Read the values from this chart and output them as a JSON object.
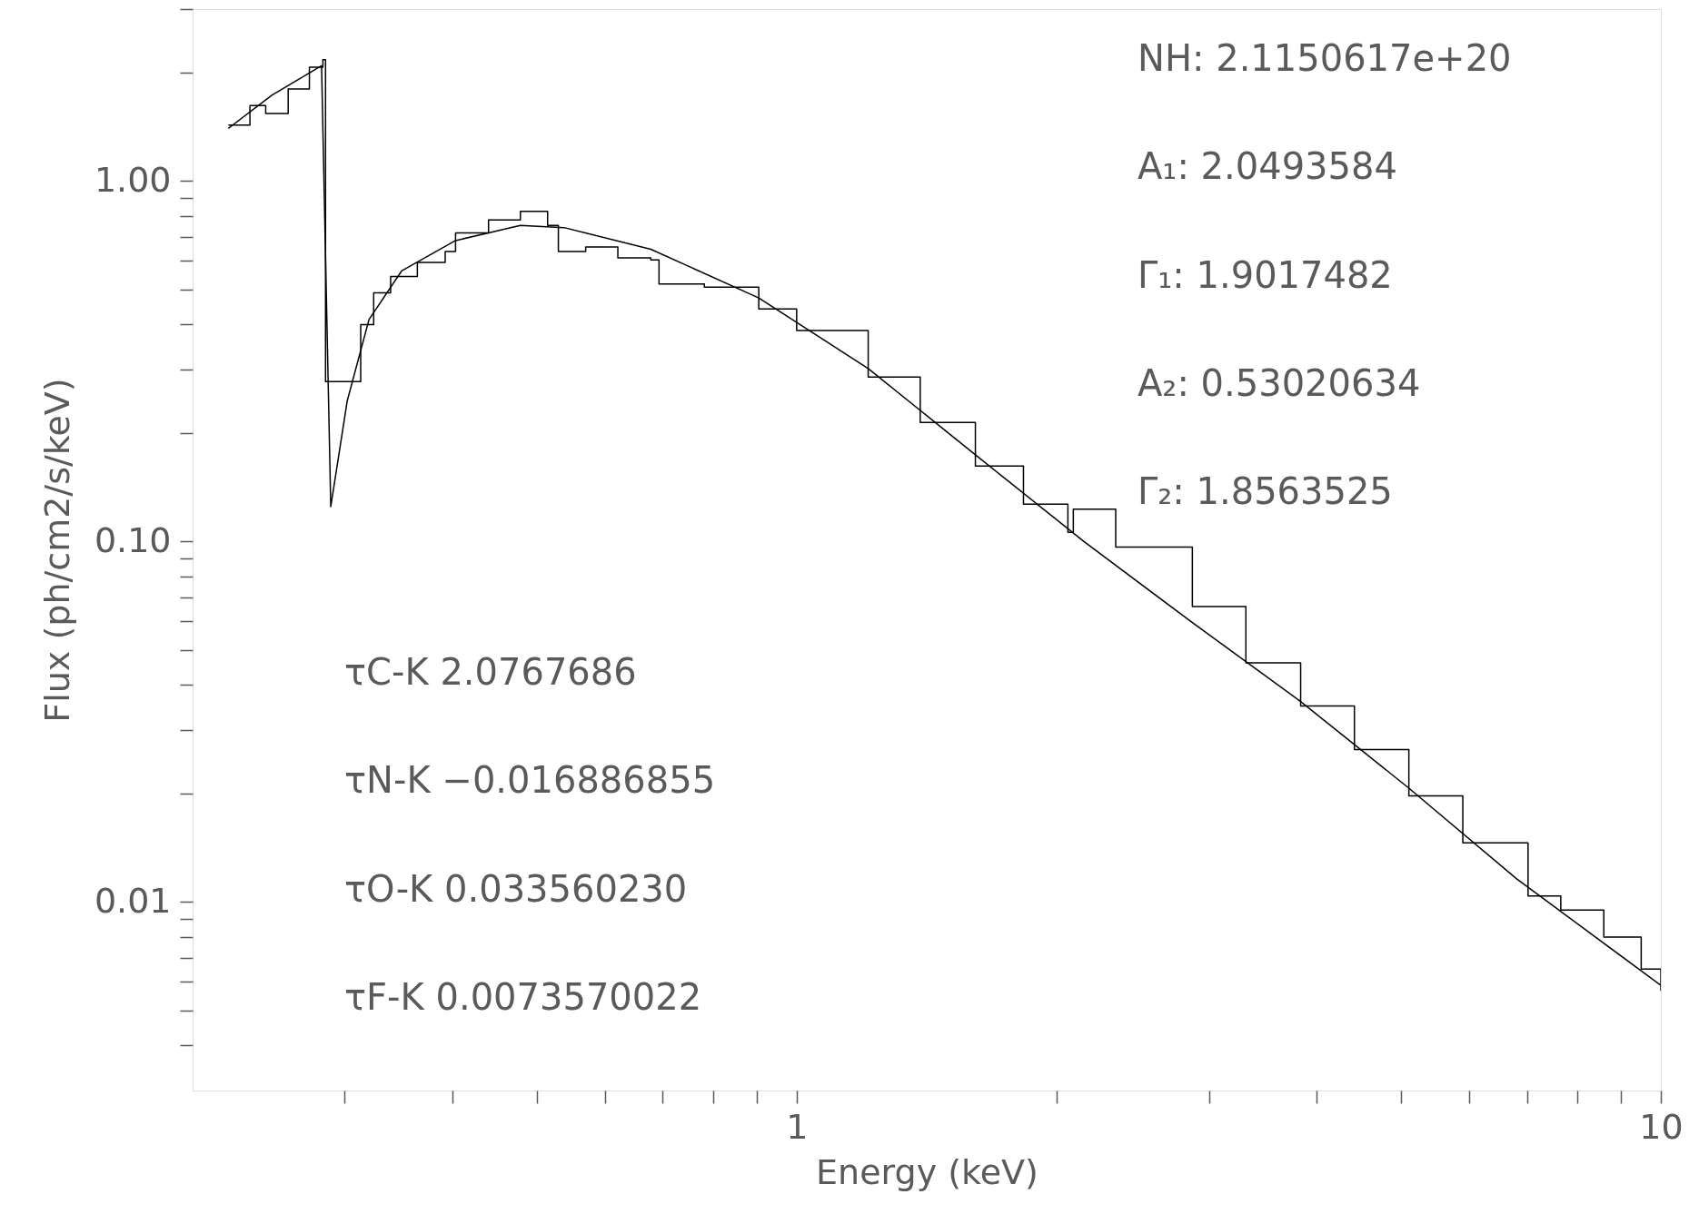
{
  "chart_data": {
    "type": "line",
    "xlabel": "Energy (keV)",
    "ylabel": "Flux (ph/cm2/s/keV)",
    "log": "xy",
    "grid": false,
    "marker": "none",
    "line_style": "solid",
    "xlim": [
      0.2,
      10
    ],
    "ylim": [
      0.003,
      3
    ],
    "xticks": [
      {
        "value": 0.3,
        "label": null
      },
      {
        "value": 0.4,
        "label": null
      },
      {
        "value": 0.5,
        "label": null
      },
      {
        "value": 0.6,
        "label": null
      },
      {
        "value": 0.7,
        "label": null
      },
      {
        "value": 0.8,
        "label": null
      },
      {
        "value": 0.9,
        "label": null
      },
      1,
      {
        "value": 2,
        "label": null
      },
      {
        "value": 3,
        "label": null
      },
      {
        "value": 4,
        "label": null
      },
      {
        "value": 5,
        "label": null
      },
      {
        "value": 6,
        "label": null
      },
      {
        "value": 7,
        "label": null
      },
      {
        "value": 8,
        "label": null
      },
      {
        "value": 9,
        "label": null
      },
      10
    ],
    "yticks": [
      {
        "value": 0.004,
        "label": null
      },
      {
        "value": 0.005,
        "label": null
      },
      {
        "value": 0.006,
        "label": null
      },
      {
        "value": 0.007,
        "label": null
      },
      {
        "value": 0.008,
        "label": null
      },
      {
        "value": 0.009,
        "label": null
      },
      {
        "value": 0.01,
        "label": "0.01"
      },
      {
        "value": 0.02,
        "label": null
      },
      {
        "value": 0.03,
        "label": null
      },
      {
        "value": 0.04,
        "label": null
      },
      {
        "value": 0.05,
        "label": null
      },
      {
        "value": 0.06,
        "label": null
      },
      {
        "value": 0.07,
        "label": null
      },
      {
        "value": 0.08,
        "label": null
      },
      {
        "value": 0.09,
        "label": null
      },
      {
        "value": 0.1,
        "label": "0.10"
      },
      {
        "value": 0.2,
        "label": null
      },
      {
        "value": 0.3,
        "label": null
      },
      {
        "value": 0.4,
        "label": null
      },
      {
        "value": 0.5,
        "label": null
      },
      {
        "value": 0.6,
        "label": null
      },
      {
        "value": 0.7,
        "label": null
      },
      {
        "value": 0.8,
        "label": null
      },
      {
        "value": 0.9,
        "label": null
      },
      {
        "value": 1,
        "label": "1.00"
      },
      {
        "value": 2,
        "label": null
      },
      {
        "value": 3,
        "label": null
      }
    ],
    "series": [
      {
        "type": "step",
        "color": "#000000",
        "x": [
          0.22,
          0.233,
          0.243,
          0.258,
          0.273,
          0.283,
          0.285,
          0.309,
          0.313,
          0.324,
          0.339,
          0.364,
          0.392,
          0.403,
          0.44,
          0.479,
          0.515,
          0.53,
          0.57,
          0.621,
          0.678,
          0.693,
          0.782,
          0.904,
          1.0,
          1.21,
          1.39,
          1.61,
          1.83,
          2.06,
          2.09,
          2.34,
          2.87,
          3.31,
          3.83,
          4.42,
          5.11,
          5.9,
          7.02,
          7.66,
          8.59,
          9.49,
          10
        ],
        "values": [
          1.43,
          1.62,
          1.54,
          1.8,
          2.07,
          2.17,
          0.278,
          0.278,
          0.4,
          0.49,
          0.544,
          0.595,
          0.638,
          0.718,
          0.78,
          0.824,
          0.753,
          0.638,
          0.656,
          0.612,
          0.604,
          0.518,
          0.508,
          0.442,
          0.385,
          0.286,
          0.214,
          0.162,
          0.127,
          0.106,
          0.123,
          0.0966,
          0.066,
          0.0461,
          0.035,
          0.0265,
          0.0197,
          0.0146,
          0.0104,
          0.0095,
          0.008,
          0.00652,
          0.00567
        ]
      },
      {
        "type": "line",
        "color": "#000000",
        "x": [
          0.22,
          0.247,
          0.282,
          0.289,
          0.302,
          0.32,
          0.349,
          0.403,
          0.479,
          0.538,
          0.678,
          0.904,
          1.21,
          1.61,
          2.15,
          2.87,
          3.83,
          5.11,
          6.81,
          10
        ],
        "values": [
          1.4,
          1.73,
          2.09,
          0.125,
          0.246,
          0.413,
          0.563,
          0.684,
          0.753,
          0.743,
          0.647,
          0.474,
          0.302,
          0.174,
          0.1,
          0.0596,
          0.036,
          0.0207,
          0.0116,
          0.00587
        ]
      }
    ],
    "annotations": [
      "NH: 2.1150617e+20",
      "A₁: 2.0493584",
      "Γ₁: 1.9017482",
      "A₂: 0.53020634",
      "Γ₂: 1.8563525",
      "τC-K 2.0767686",
      "τN-K −0.016886855",
      "τO-K 0.033560230",
      "τF-K 0.0073570022"
    ]
  }
}
